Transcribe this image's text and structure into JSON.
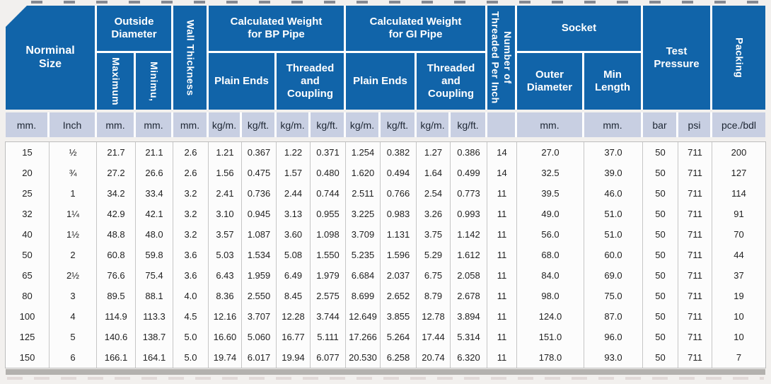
{
  "header": {
    "nominal_size": "Norminal Size",
    "outside_diameter": "Outside Diameter",
    "maximum": "Maximum",
    "minimum": "Minimu,",
    "wall_thickness": "Wall Thickness",
    "bp_weight": "Calculated Weight for BP Pipe",
    "gi_weight": "Calculated Weight for GI Pipe",
    "plain_ends_bp": "Plain Ends",
    "threaded_coupling_bp": "Threaded and Coupling",
    "plain_ends_gi": "Plain Ends",
    "threaded_coupling_gi": "Threaded and Coupling",
    "threads_line1": "Number of",
    "threads_line2": "Threaded Per Inch",
    "socket": "Socket",
    "outer_diameter": "Outer Diameter",
    "min_length": "Min Length",
    "test_pressure": "Test Pressure",
    "packing": "Packing"
  },
  "units": [
    "mm.",
    "Inch",
    "mm.",
    "mm.",
    "mm.",
    "kg/m.",
    "kg/ft.",
    "kg/m.",
    "kg/ft.",
    "kg/m.",
    "kg/ft.",
    "kg/m.",
    "kg/ft.",
    "",
    "mm.",
    "mm.",
    "bar",
    "psi",
    "pce./bdl"
  ],
  "rows": [
    [
      "15",
      "½",
      "21.7",
      "21.1",
      "2.6",
      "1.21",
      "0.367",
      "1.22",
      "0.371",
      "1.254",
      "0.382",
      "1.27",
      "0.386",
      "14",
      "27.0",
      "37.0",
      "50",
      "711",
      "200"
    ],
    [
      "20",
      "¾",
      "27.2",
      "26.6",
      "2.6",
      "1.56",
      "0.475",
      "1.57",
      "0.480",
      "1.620",
      "0.494",
      "1.64",
      "0.499",
      "14",
      "32.5",
      "39.0",
      "50",
      "711",
      "127"
    ],
    [
      "25",
      "1",
      "34.2",
      "33.4",
      "3.2",
      "2.41",
      "0.736",
      "2.44",
      "0.744",
      "2.511",
      "0.766",
      "2.54",
      "0.773",
      "11",
      "39.5",
      "46.0",
      "50",
      "711",
      "114"
    ],
    [
      "32",
      "1¼",
      "42.9",
      "42.1",
      "3.2",
      "3.10",
      "0.945",
      "3.13",
      "0.955",
      "3.225",
      "0.983",
      "3.26",
      "0.993",
      "11",
      "49.0",
      "51.0",
      "50",
      "711",
      "91"
    ],
    [
      "40",
      "1½",
      "48.8",
      "48.0",
      "3.2",
      "3.57",
      "1.087",
      "3.60",
      "1.098",
      "3.709",
      "1.131",
      "3.75",
      "1.142",
      "11",
      "56.0",
      "51.0",
      "50",
      "711",
      "70"
    ],
    [
      "50",
      "2",
      "60.8",
      "59.8",
      "3.6",
      "5.03",
      "1.534",
      "5.08",
      "1.550",
      "5.235",
      "1.596",
      "5.29",
      "1.612",
      "11",
      "68.0",
      "60.0",
      "50",
      "711",
      "44"
    ],
    [
      "65",
      "2½",
      "76.6",
      "75.4",
      "3.6",
      "6.43",
      "1.959",
      "6.49",
      "1.979",
      "6.684",
      "2.037",
      "6.75",
      "2.058",
      "11",
      "84.0",
      "69.0",
      "50",
      "711",
      "37"
    ],
    [
      "80",
      "3",
      "89.5",
      "88.1",
      "4.0",
      "8.36",
      "2.550",
      "8.45",
      "2.575",
      "8.699",
      "2.652",
      "8.79",
      "2.678",
      "11",
      "98.0",
      "75.0",
      "50",
      "711",
      "19"
    ],
    [
      "100",
      "4",
      "114.9",
      "113.3",
      "4.5",
      "12.16",
      "3.707",
      "12.28",
      "3.744",
      "12.649",
      "3.855",
      "12.78",
      "3.894",
      "11",
      "124.0",
      "87.0",
      "50",
      "711",
      "10"
    ],
    [
      "125",
      "5",
      "140.6",
      "138.7",
      "5.0",
      "16.60",
      "5.060",
      "16.77",
      "5.111",
      "17.266",
      "5.264",
      "17.44",
      "5.314",
      "11",
      "151.0",
      "96.0",
      "50",
      "711",
      "10"
    ],
    [
      "150",
      "6",
      "166.1",
      "164.1",
      "5.0",
      "19.74",
      "6.017",
      "19.94",
      "6.077",
      "20.530",
      "6.258",
      "20.74",
      "6.320",
      "11",
      "178.0",
      "93.0",
      "50",
      "711",
      "7"
    ]
  ],
  "colors": {
    "header_blue": "#1164a9",
    "units_row_bg": "#c8cfe2",
    "units_text": "#1d2633",
    "data_separator": "#c6c6c6"
  }
}
